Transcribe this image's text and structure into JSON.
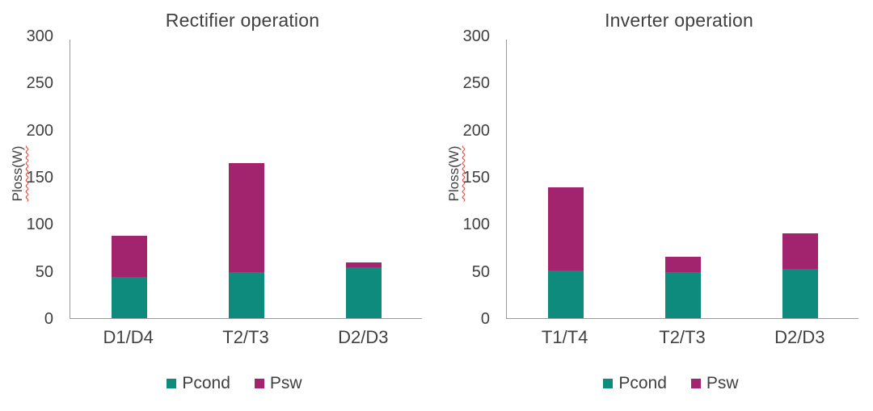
{
  "colors": {
    "pcond": "#0f8b7e",
    "psw": "#a2246e",
    "axis": "#9b9b9b",
    "text": "#404040",
    "squiggle": "#e03c31"
  },
  "chart_data": [
    {
      "type": "bar",
      "variant": "stacked",
      "title": "Rectifier operation",
      "xlabel": "",
      "ylabel": "Ploss(W)",
      "ylim": [
        0,
        300
      ],
      "yticks": [
        0,
        50,
        100,
        150,
        200,
        250,
        300
      ],
      "grid": false,
      "legend_position": "bottom",
      "categories": [
        "D1/D4",
        "T2/T3",
        "D2/D3"
      ],
      "series": [
        {
          "name": "Pcond",
          "values": [
            44,
            50,
            55
          ]
        },
        {
          "name": "Psw",
          "values": [
            45,
            117,
            5
          ]
        }
      ]
    },
    {
      "type": "bar",
      "variant": "stacked",
      "title": "Inverter operation",
      "xlabel": "",
      "ylabel": "Ploss(W)",
      "ylim": [
        0,
        300
      ],
      "yticks": [
        0,
        50,
        100,
        150,
        200,
        250,
        300
      ],
      "grid": false,
      "legend_position": "bottom",
      "categories": [
        "T1/T4",
        "T2/T3",
        "D2/D3"
      ],
      "series": [
        {
          "name": "Pcond",
          "values": [
            51,
            50,
            53
          ]
        },
        {
          "name": "Psw",
          "values": [
            90,
            16,
            38
          ]
        }
      ]
    }
  ]
}
